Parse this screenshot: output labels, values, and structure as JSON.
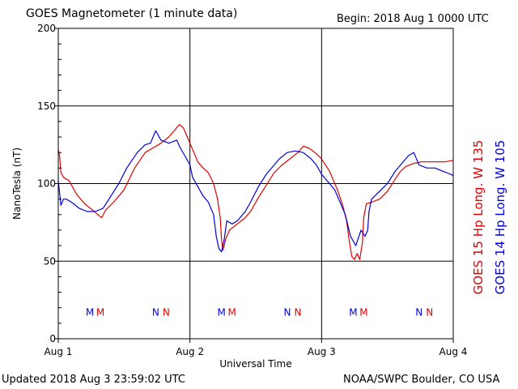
{
  "header": {
    "title": "GOES Magnetometer (1 minute data)",
    "begin": "Begin:  2018 Aug 1 0000 UTC"
  },
  "footer": {
    "updated": "Updated 2018 Aug  3 23:59:02 UTC",
    "source": "NOAA/SWPC Boulder, CO USA"
  },
  "colors": {
    "goes15": "#e00000",
    "goes14": "#0000e0",
    "grid": "#000000"
  },
  "chart_data": {
    "type": "line",
    "title": "GOES Magnetometer (1 minute data)",
    "xlabel": "Universal Time",
    "ylabel": "NanoTesla (nT)",
    "x_unit": "days since 2018 Aug 1 0000 UTC",
    "xlim": [
      0,
      3
    ],
    "ylim": [
      0,
      200
    ],
    "x_ticks": [
      0,
      1,
      2,
      3
    ],
    "x_tick_labels": [
      "Aug 1",
      "Aug 2",
      "Aug 3",
      "Aug 4"
    ],
    "y_ticks": [
      0,
      50,
      100,
      150,
      200
    ],
    "y_tick_labels": [
      "0",
      "50",
      "100",
      "150",
      "200"
    ],
    "grid": true,
    "legend_placement": "right (vertical)",
    "series": [
      {
        "name": "GOES 15 Hp  Long. W 135",
        "color": "#e00000",
        "points": [
          [
            0,
            122
          ],
          [
            0.01,
            118
          ],
          [
            0.02,
            107
          ],
          [
            0.04,
            104
          ],
          [
            0.06,
            103
          ],
          [
            0.08,
            102
          ],
          [
            0.1,
            99
          ],
          [
            0.14,
            93
          ],
          [
            0.2,
            87
          ],
          [
            0.26,
            83
          ],
          [
            0.3,
            80
          ],
          [
            0.33,
            78
          ],
          [
            0.36,
            83
          ],
          [
            0.42,
            88
          ],
          [
            0.5,
            96
          ],
          [
            0.58,
            110
          ],
          [
            0.66,
            120
          ],
          [
            0.72,
            123
          ],
          [
            0.78,
            126
          ],
          [
            0.84,
            130
          ],
          [
            0.88,
            134
          ],
          [
            0.92,
            138
          ],
          [
            0.95,
            136
          ],
          [
            0.98,
            130
          ],
          [
            1.02,
            122
          ],
          [
            1.06,
            114
          ],
          [
            1.1,
            110
          ],
          [
            1.14,
            107
          ],
          [
            1.18,
            100
          ],
          [
            1.21,
            90
          ],
          [
            1.23,
            78
          ],
          [
            1.24,
            64
          ],
          [
            1.25,
            57
          ],
          [
            1.26,
            60
          ],
          [
            1.27,
            64
          ],
          [
            1.3,
            70
          ],
          [
            1.36,
            74
          ],
          [
            1.42,
            78
          ],
          [
            1.46,
            82
          ],
          [
            1.52,
            91
          ],
          [
            1.58,
            99
          ],
          [
            1.64,
            107
          ],
          [
            1.7,
            112
          ],
          [
            1.76,
            116
          ],
          [
            1.82,
            120
          ],
          [
            1.86,
            124
          ],
          [
            1.9,
            123
          ],
          [
            1.95,
            120
          ],
          [
            2.0,
            116
          ],
          [
            2.06,
            108
          ],
          [
            2.12,
            96
          ],
          [
            2.16,
            86
          ],
          [
            2.19,
            76
          ],
          [
            2.21,
            63
          ],
          [
            2.23,
            53
          ],
          [
            2.25,
            51
          ],
          [
            2.27,
            55
          ],
          [
            2.29,
            51
          ],
          [
            2.31,
            62
          ],
          [
            2.32,
            78
          ],
          [
            2.34,
            87
          ],
          [
            2.38,
            88
          ],
          [
            2.44,
            90
          ],
          [
            2.5,
            95
          ],
          [
            2.56,
            103
          ],
          [
            2.6,
            108
          ],
          [
            2.64,
            111
          ],
          [
            2.7,
            113
          ],
          [
            2.76,
            114
          ],
          [
            2.82,
            114
          ],
          [
            2.88,
            114
          ],
          [
            2.94,
            114
          ],
          [
            3.0,
            115
          ]
        ]
      },
      {
        "name": "GOES 14 Hp  Long. W 105",
        "color": "#0000e0",
        "points": [
          [
            0,
            102
          ],
          [
            0.01,
            94
          ],
          [
            0.02,
            86
          ],
          [
            0.04,
            90
          ],
          [
            0.06,
            90
          ],
          [
            0.1,
            88
          ],
          [
            0.16,
            84
          ],
          [
            0.22,
            82
          ],
          [
            0.28,
            82
          ],
          [
            0.34,
            84
          ],
          [
            0.4,
            92
          ],
          [
            0.46,
            100
          ],
          [
            0.52,
            110
          ],
          [
            0.6,
            120
          ],
          [
            0.66,
            125
          ],
          [
            0.7,
            126
          ],
          [
            0.72,
            130
          ],
          [
            0.74,
            134
          ],
          [
            0.78,
            128
          ],
          [
            0.84,
            126
          ],
          [
            0.9,
            128
          ],
          [
            0.92,
            124
          ],
          [
            0.96,
            118
          ],
          [
            1.0,
            112
          ],
          [
            1.02,
            104
          ],
          [
            1.06,
            98
          ],
          [
            1.1,
            92
          ],
          [
            1.14,
            88
          ],
          [
            1.18,
            80
          ],
          [
            1.2,
            66
          ],
          [
            1.22,
            58
          ],
          [
            1.24,
            56
          ],
          [
            1.26,
            64
          ],
          [
            1.28,
            76
          ],
          [
            1.32,
            74
          ],
          [
            1.36,
            76
          ],
          [
            1.42,
            82
          ],
          [
            1.46,
            88
          ],
          [
            1.52,
            98
          ],
          [
            1.58,
            106
          ],
          [
            1.64,
            112
          ],
          [
            1.68,
            116
          ],
          [
            1.74,
            120
          ],
          [
            1.8,
            121
          ],
          [
            1.86,
            120
          ],
          [
            1.92,
            116
          ],
          [
            1.96,
            112
          ],
          [
            2.0,
            106
          ],
          [
            2.06,
            100
          ],
          [
            2.1,
            96
          ],
          [
            2.14,
            88
          ],
          [
            2.18,
            80
          ],
          [
            2.22,
            66
          ],
          [
            2.26,
            60
          ],
          [
            2.3,
            70
          ],
          [
            2.33,
            66
          ],
          [
            2.35,
            70
          ],
          [
            2.36,
            82
          ],
          [
            2.38,
            90
          ],
          [
            2.44,
            95
          ],
          [
            2.5,
            100
          ],
          [
            2.56,
            108
          ],
          [
            2.6,
            112
          ],
          [
            2.66,
            118
          ],
          [
            2.7,
            120
          ],
          [
            2.74,
            112
          ],
          [
            2.8,
            110
          ],
          [
            2.86,
            110
          ],
          [
            2.92,
            108
          ],
          [
            2.98,
            106
          ],
          [
            3.0,
            105
          ]
        ]
      }
    ],
    "markers": [
      {
        "x": 0.24,
        "label": "M",
        "color": "#0000e0"
      },
      {
        "x": 0.32,
        "label": "M",
        "color": "#e00000"
      },
      {
        "x": 0.74,
        "label": "N",
        "color": "#0000e0"
      },
      {
        "x": 0.82,
        "label": "N",
        "color": "#e00000"
      },
      {
        "x": 1.24,
        "label": "M",
        "color": "#0000e0"
      },
      {
        "x": 1.32,
        "label": "M",
        "color": "#e00000"
      },
      {
        "x": 1.74,
        "label": "N",
        "color": "#0000e0"
      },
      {
        "x": 1.82,
        "label": "N",
        "color": "#e00000"
      },
      {
        "x": 2.24,
        "label": "M",
        "color": "#0000e0"
      },
      {
        "x": 2.32,
        "label": "M",
        "color": "#e00000"
      },
      {
        "x": 2.74,
        "label": "N",
        "color": "#0000e0"
      },
      {
        "x": 2.82,
        "label": "N",
        "color": "#e00000"
      }
    ],
    "marker_y": 17
  }
}
